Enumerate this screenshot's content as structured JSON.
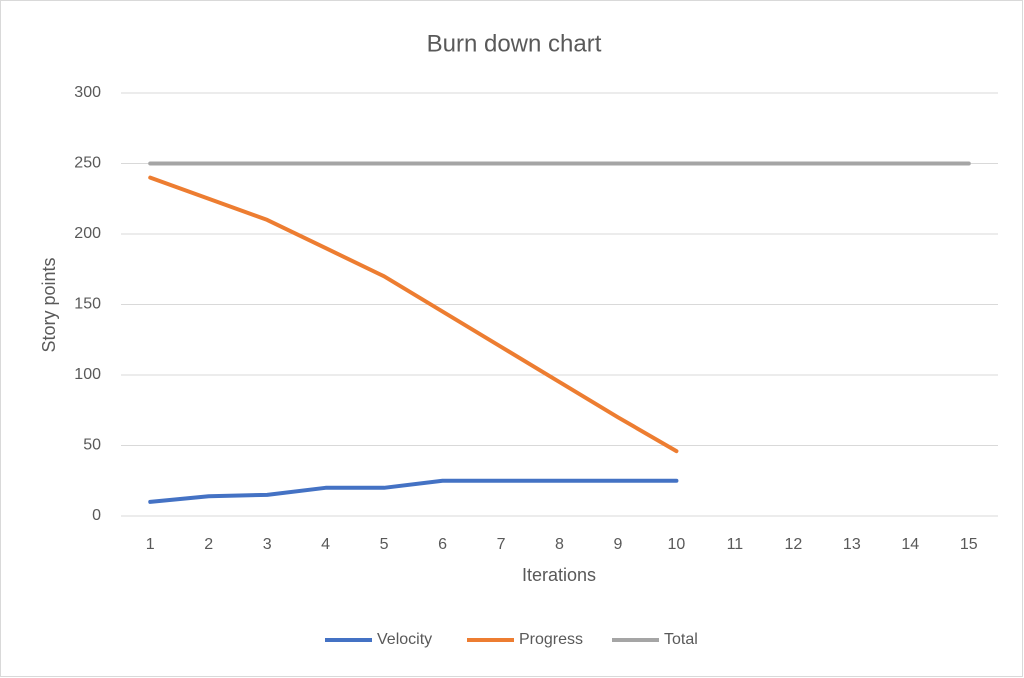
{
  "chart_data": {
    "type": "line",
    "title": "Burn down chart",
    "x_label": "Iterations",
    "y_label": "Story points",
    "categories": [
      "1",
      "2",
      "3",
      "4",
      "5",
      "6",
      "7",
      "8",
      "9",
      "10",
      "11",
      "12",
      "13",
      "14",
      "15"
    ],
    "series": [
      {
        "name": "Velocity",
        "color": "#4472c4",
        "values": [
          10,
          14,
          15,
          20,
          20,
          25,
          25,
          25,
          25,
          25,
          null,
          null,
          null,
          null,
          null
        ]
      },
      {
        "name": "Progress",
        "color": "#ed7d31",
        "values": [
          240,
          225,
          210,
          190,
          170,
          145,
          120,
          95,
          70,
          46,
          null,
          null,
          null,
          null,
          null
        ]
      },
      {
        "name": "Total",
        "color": "#a5a5a5",
        "values": [
          250,
          250,
          250,
          250,
          250,
          250,
          250,
          250,
          250,
          250,
          250,
          250,
          250,
          250,
          250
        ]
      }
    ],
    "ylim": [
      0,
      300
    ],
    "yticks": [
      0,
      50,
      100,
      150,
      200,
      250,
      300
    ],
    "grid": true,
    "legend": "bottom"
  }
}
